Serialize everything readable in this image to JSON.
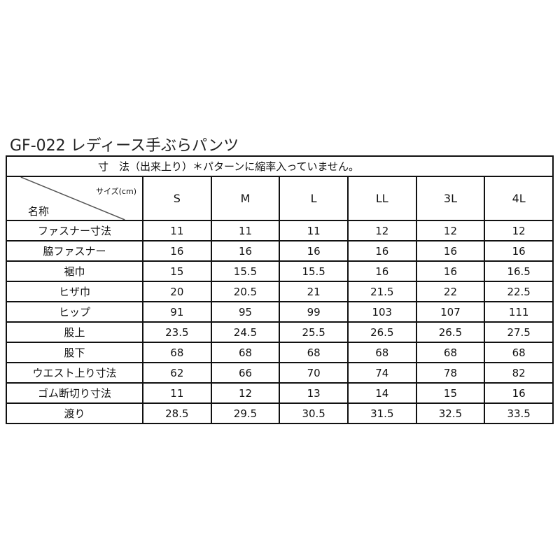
{
  "title": "GF-022 レディース手ぶらパンツ",
  "caption": "寸　法（出来上り）＊パターンに縮率入っていません。",
  "corner": {
    "size_label": "サイズ(cm)",
    "name_label": "名称"
  },
  "sizes": [
    "S",
    "M",
    "L",
    "LL",
    "3L",
    "4L"
  ],
  "rows": [
    {
      "label": "ファスナー寸法",
      "values": [
        "11",
        "11",
        "11",
        "12",
        "12",
        "12"
      ]
    },
    {
      "label": "脇ファスナー",
      "values": [
        "16",
        "16",
        "16",
        "16",
        "16",
        "16"
      ]
    },
    {
      "label": "裾巾",
      "values": [
        "15",
        "15.5",
        "15.5",
        "16",
        "16",
        "16.5"
      ]
    },
    {
      "label": "ヒザ巾",
      "values": [
        "20",
        "20.5",
        "21",
        "21.5",
        "22",
        "22.5"
      ]
    },
    {
      "label": "ヒップ",
      "values": [
        "91",
        "95",
        "99",
        "103",
        "107",
        "111"
      ]
    },
    {
      "label": "股上",
      "values": [
        "23.5",
        "24.5",
        "25.5",
        "26.5",
        "26.5",
        "27.5"
      ]
    },
    {
      "label": "股下",
      "values": [
        "68",
        "68",
        "68",
        "68",
        "68",
        "68"
      ]
    },
    {
      "label": "ウエスト上り寸法",
      "values": [
        "62",
        "66",
        "70",
        "74",
        "78",
        "82"
      ]
    },
    {
      "label": "ゴム断切り寸法",
      "values": [
        "11",
        "12",
        "13",
        "14",
        "15",
        "16"
      ]
    },
    {
      "label": "渡り",
      "values": [
        "28.5",
        "29.5",
        "30.5",
        "31.5",
        "32.5",
        "33.5"
      ]
    }
  ]
}
